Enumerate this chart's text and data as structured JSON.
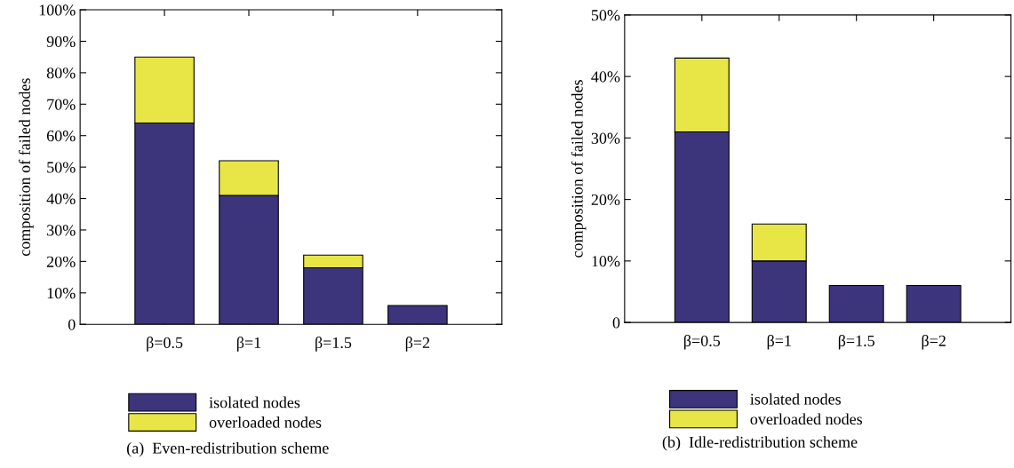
{
  "chart_data": [
    {
      "type": "bar",
      "title": "(a)  Even-redistribution scheme",
      "ylabel": "composition of failed nodes",
      "categories": [
        "β=0.5",
        "β=1",
        "β=1.5",
        "β=2"
      ],
      "stacked": true,
      "legend": "bottom",
      "grid": false,
      "series": [
        {
          "name": "isolated nodes",
          "color": "#3c357c",
          "values": [
            64,
            41,
            18,
            6
          ]
        },
        {
          "name": "overloaded nodes",
          "color": "#e8e647",
          "values": [
            21,
            11,
            4,
            0
          ]
        }
      ],
      "ylim": [
        0,
        100
      ],
      "yticks": [
        0,
        {
          "value": 10,
          "label": "10%"
        },
        {
          "value": 20,
          "label": "20%"
        },
        {
          "value": 30,
          "label": "30%"
        },
        {
          "value": 40,
          "label": "40%"
        },
        {
          "value": 50,
          "label": "50%"
        },
        {
          "value": 60,
          "label": "60%"
        },
        {
          "value": 70,
          "label": "70%"
        },
        {
          "value": 80,
          "label": "80%"
        },
        {
          "value": 90,
          "label": "90%"
        },
        {
          "value": 100,
          "label": "100%"
        }
      ]
    },
    {
      "type": "bar",
      "title": "(b)  Idle-redistribution scheme",
      "ylabel": "composition of failed nodes",
      "categories": [
        "β=0.5",
        "β=1",
        "β=1.5",
        "β=2"
      ],
      "stacked": true,
      "legend": "bottom",
      "grid": false,
      "series": [
        {
          "name": "isolated nodes",
          "color": "#3c357c",
          "values": [
            31,
            10,
            6,
            6
          ]
        },
        {
          "name": "overloaded nodes",
          "color": "#e8e647",
          "values": [
            12,
            6,
            0,
            0
          ]
        }
      ],
      "ylim": [
        0,
        50
      ],
      "yticks": [
        0,
        {
          "value": 10,
          "label": "10%"
        },
        {
          "value": 20,
          "label": "20%"
        },
        {
          "value": 30,
          "label": "30%"
        },
        {
          "value": 40,
          "label": "40%"
        },
        {
          "value": 50,
          "label": "50%"
        }
      ]
    }
  ]
}
